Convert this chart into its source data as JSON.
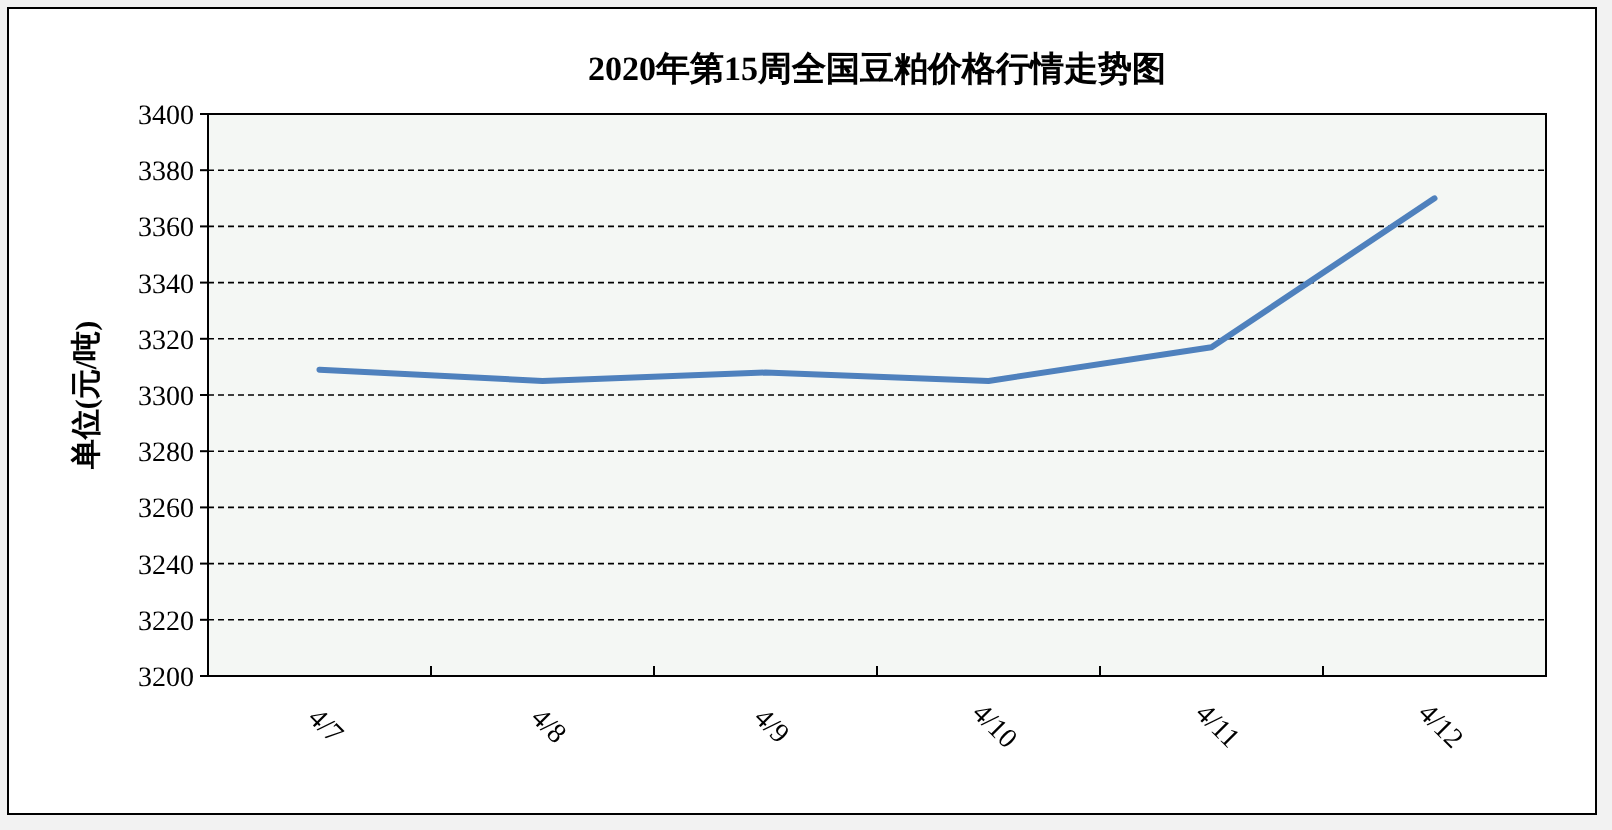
{
  "chart_data": {
    "type": "line",
    "title": "2020年第15周全国豆粕价格行情走势图",
    "ylabel": "单位(元/吨)",
    "categories": [
      "4/7",
      "4/8",
      "4/9",
      "4/10",
      "4/11",
      "4/12"
    ],
    "series": [
      {
        "color": "#4f81bd",
        "values": [
          3309,
          3305,
          3308,
          3305,
          3317,
          3370
        ]
      }
    ],
    "ylim": [
      3200,
      3400
    ],
    "yticks": [
      3200,
      3220,
      3240,
      3260,
      3280,
      3300,
      3320,
      3340,
      3360,
      3380,
      3400
    ],
    "grid": "y",
    "marker": "none",
    "line_style": "solid"
  }
}
